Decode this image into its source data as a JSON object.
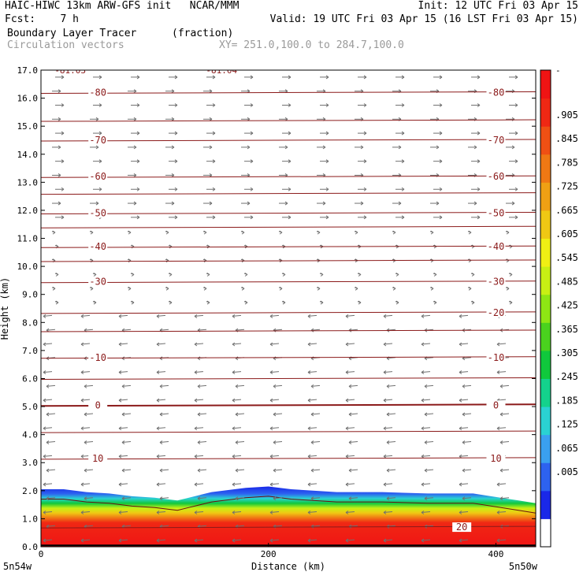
{
  "header": {
    "line1_left": "HAIC-HIWC 13km ARW-GFS init   NCAR/MMM",
    "line1_right": "Init: 12 UTC Fri 03 Apr 15",
    "line2_left": "Fcst:    7 h",
    "line2_right": "Valid: 19 UTC Fri 03 Apr 15 (16 LST Fri 03 Apr 15)",
    "field_name": "Boundary Layer Tracer",
    "field_units": "(fraction)",
    "vector_label": "Circulation vectors",
    "xy_label": "XY= 251.0,100.0 to 284.7,100.0"
  },
  "chart_data": {
    "type": "heatmap",
    "ylabel": "Height (km)",
    "xlabel": "Distance (km)",
    "ylim": [
      0,
      17
    ],
    "xlim": [
      0,
      435
    ],
    "yticks": [
      "0.0",
      "1.0",
      "2.0",
      "3.0",
      "4.0",
      "5.0",
      "6.0",
      "7.0",
      "8.0",
      "9.0",
      "10.0",
      "11.0",
      "12.0",
      "13.0",
      "14.0",
      "15.0",
      "16.0",
      "17.0"
    ],
    "xticks": [
      0,
      200,
      400
    ],
    "xtick_labels": [
      "0",
      "200",
      "400"
    ],
    "endpoints": {
      "left": "5n54w",
      "right": "5n50w"
    },
    "top_labels": {
      "left": "-81.03",
      "right": "-81.04"
    },
    "colorbar": {
      "top_label": "-",
      "labels": [
        ".905",
        ".845",
        ".785",
        ".725",
        ".665",
        ".605",
        ".545",
        ".485",
        ".425",
        ".365",
        ".305",
        ".245",
        ".185",
        ".125",
        ".065",
        ".005"
      ],
      "colors": [
        "#ffffff",
        "#1a28e8",
        "#2d62f0",
        "#3aa0f0",
        "#2ad2d2",
        "#14d28c",
        "#10c83c",
        "#4ad21e",
        "#8ee614",
        "#c8f014",
        "#f0f014",
        "#f0c814",
        "#f0a014",
        "#f07814",
        "#f05014",
        "#f02814",
        "#f01414"
      ]
    },
    "tracer_layer": {
      "x": [
        0,
        20,
        40,
        60,
        80,
        100,
        120,
        130,
        150,
        180,
        200,
        220,
        260,
        300,
        340,
        380,
        420,
        435
      ],
      "top_km": [
        2.05,
        2.05,
        1.95,
        1.9,
        1.8,
        1.75,
        1.65,
        1.75,
        1.95,
        2.1,
        2.15,
        2.05,
        1.95,
        1.95,
        1.9,
        1.9,
        1.65,
        1.55
      ]
    },
    "isotherms": [
      {
        "value": "-80",
        "y_km": 16.2,
        "label_x": [
          50,
          400
        ]
      },
      {
        "value": "-70",
        "y_km": 14.5,
        "label_x": [
          50,
          400
        ]
      },
      {
        "value": "-60",
        "y_km": 13.2,
        "label_x": [
          50,
          400
        ]
      },
      {
        "value": "-50",
        "y_km": 11.9,
        "label_x": [
          50,
          400
        ]
      },
      {
        "value": "-40",
        "y_km": 10.7,
        "label_x": [
          50,
          400
        ]
      },
      {
        "value": "-30",
        "y_km": 9.45,
        "label_x": [
          50,
          400
        ]
      },
      {
        "value": "-20",
        "y_km": 8.35,
        "label_x": [
          400
        ]
      },
      {
        "value": "-10",
        "y_km": 6.75,
        "label_x": [
          50,
          400
        ]
      },
      {
        "value": "0",
        "y_km": 5.05,
        "label_x": [
          50,
          400
        ]
      },
      {
        "value": "10",
        "y_km": 3.15,
        "label_x": [
          50,
          400
        ]
      },
      {
        "value": "20",
        "y_km": 0.7,
        "label_x": [
          370
        ]
      }
    ]
  }
}
